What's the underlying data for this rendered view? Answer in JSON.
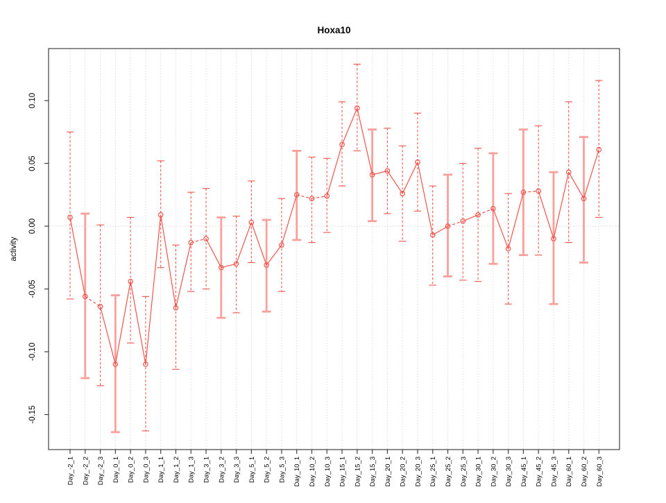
{
  "title": "Hoxa10",
  "ylabel": "activity",
  "colors": {
    "series_red": "#f0524a",
    "band_pink": "#f9a09b",
    "grid_gray": "#dcdcdc",
    "zero_line_gray": "#d4d4d4",
    "box_stroke": "#3f3f3f",
    "tick_stroke": "#3f3f3f",
    "text_black": "#000000",
    "background": "#ffffff"
  },
  "chart_data": {
    "type": "line",
    "title": "Hoxa10",
    "xlabel": "",
    "ylabel": "activity",
    "ylim": [
      -0.178,
      0.142
    ],
    "grid": "vertical dotted gridlines per category; dotted horizontal line at y=0",
    "legend_position": "none",
    "marker": "open-circle",
    "categories": [
      "Day_-2_1",
      "Day_-2_2",
      "Day_-2_3",
      "Day_0_1",
      "Day_0_2",
      "Day_0_3",
      "Day_1_1",
      "Day_1_2",
      "Day_1_3",
      "Day_3_1",
      "Day_3_2",
      "Day_3_3",
      "Day_5_1",
      "Day_5_2",
      "Day_5_3",
      "Day_10_1",
      "Day_10_2",
      "Day_10_3",
      "Day_15_1",
      "Day_15_2",
      "Day_15_3",
      "Day_20_1",
      "Day_20_2",
      "Day_20_3",
      "Day_25_1",
      "Day_25_2",
      "Day_25_3",
      "Day_30_1",
      "Day_30_2",
      "Day_30_3",
      "Day_45_1",
      "Day_45_2",
      "Day_45_3",
      "Day_60_1",
      "Day_60_2",
      "Day_60_3"
    ],
    "series": [
      {
        "name": "activity",
        "values": [
          0.007,
          -0.056,
          -0.064,
          -0.11,
          -0.044,
          -0.11,
          0.009,
          -0.065,
          -0.013,
          -0.01,
          -0.033,
          -0.03,
          0.003,
          -0.031,
          -0.015,
          0.025,
          0.022,
          0.024,
          0.065,
          0.094,
          0.041,
          0.044,
          0.026,
          0.051,
          -0.007,
          0.0,
          0.004,
          0.009,
          0.014,
          -0.018,
          0.027,
          0.028,
          -0.01,
          0.043,
          0.022,
          0.061
        ]
      }
    ],
    "error_low": [
      -0.058,
      -0.121,
      -0.127,
      -0.164,
      -0.093,
      -0.163,
      -0.033,
      -0.114,
      -0.052,
      -0.05,
      -0.073,
      -0.069,
      -0.029,
      -0.068,
      -0.052,
      -0.011,
      -0.013,
      -0.005,
      0.032,
      0.06,
      0.004,
      0.01,
      -0.012,
      0.012,
      -0.047,
      -0.04,
      -0.043,
      -0.044,
      -0.03,
      -0.062,
      -0.023,
      -0.023,
      -0.062,
      -0.013,
      -0.029,
      0.007
    ],
    "error_high": [
      0.075,
      0.01,
      0.001,
      -0.055,
      0.007,
      -0.056,
      0.052,
      -0.015,
      0.027,
      0.03,
      0.007,
      0.008,
      0.036,
      0.005,
      0.022,
      0.06,
      0.055,
      0.054,
      0.099,
      0.129,
      0.077,
      0.078,
      0.064,
      0.09,
      0.032,
      0.041,
      0.05,
      0.062,
      0.058,
      0.026,
      0.077,
      0.08,
      0.043,
      0.099,
      0.071,
      0.116
    ],
    "error_bar_style": [
      "dashed",
      "solid",
      "dashed",
      "solid",
      "dashed",
      "dashed",
      "dashed",
      "dashed",
      "dashed",
      "dashed",
      "solid",
      "dashed",
      "dashed",
      "solid",
      "dashed",
      "solid",
      "dashed",
      "dashed",
      "dashed",
      "dashed",
      "solid",
      "dashed",
      "dashed",
      "dashed",
      "dashed",
      "solid",
      "dashed",
      "dashed",
      "solid",
      "dashed",
      "solid",
      "dashed",
      "solid",
      "dashed",
      "solid",
      "dashed"
    ],
    "dashed_connector_segments": [
      1,
      8,
      15,
      16,
      25,
      27,
      30
    ],
    "yticks": [
      {
        "value": 0.1,
        "label": "0.10"
      },
      {
        "value": 0.05,
        "label": "0.05"
      },
      {
        "value": 0.0,
        "label": "0.00"
      },
      {
        "value": -0.05,
        "label": "-0.05"
      },
      {
        "value": -0.1,
        "label": "-0.10"
      },
      {
        "value": -0.15,
        "label": "-0.15"
      }
    ]
  },
  "layout_note": "single scatter/line plot with confidence-interval error bars, no legend"
}
